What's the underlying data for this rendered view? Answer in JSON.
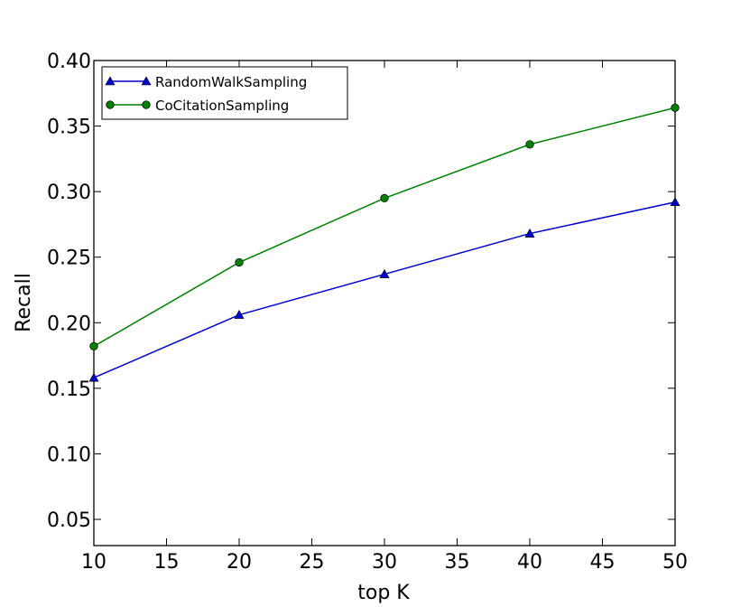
{
  "chart_data": {
    "type": "line",
    "title": "",
    "xlabel": "top K",
    "ylabel": "Recall",
    "xlim": [
      10,
      50
    ],
    "ylim": [
      0.03,
      0.4
    ],
    "xticks": [
      10,
      15,
      20,
      25,
      30,
      35,
      40,
      45,
      50
    ],
    "yticks": [
      0.05,
      0.1,
      0.15,
      0.2,
      0.25,
      0.3,
      0.35,
      0.4
    ],
    "xtick_labels": [
      "10",
      "15",
      "20",
      "25",
      "30",
      "35",
      "40",
      "45",
      "50"
    ],
    "ytick_labels": [
      "0.05",
      "0.10",
      "0.15",
      "0.20",
      "0.25",
      "0.30",
      "0.35",
      "0.40"
    ],
    "grid": false,
    "legend_position": "top-left",
    "x": [
      10,
      20,
      30,
      40,
      50
    ],
    "series": [
      {
        "name": "RandomWalkSampling",
        "color": "#0000cc",
        "marker": "triangle",
        "values": [
          0.158,
          0.206,
          0.237,
          0.268,
          0.292
        ]
      },
      {
        "name": "CoCitationSampling",
        "color": "#007f00",
        "marker": "circle",
        "values": [
          0.182,
          0.246,
          0.295,
          0.336,
          0.364
        ]
      }
    ]
  }
}
